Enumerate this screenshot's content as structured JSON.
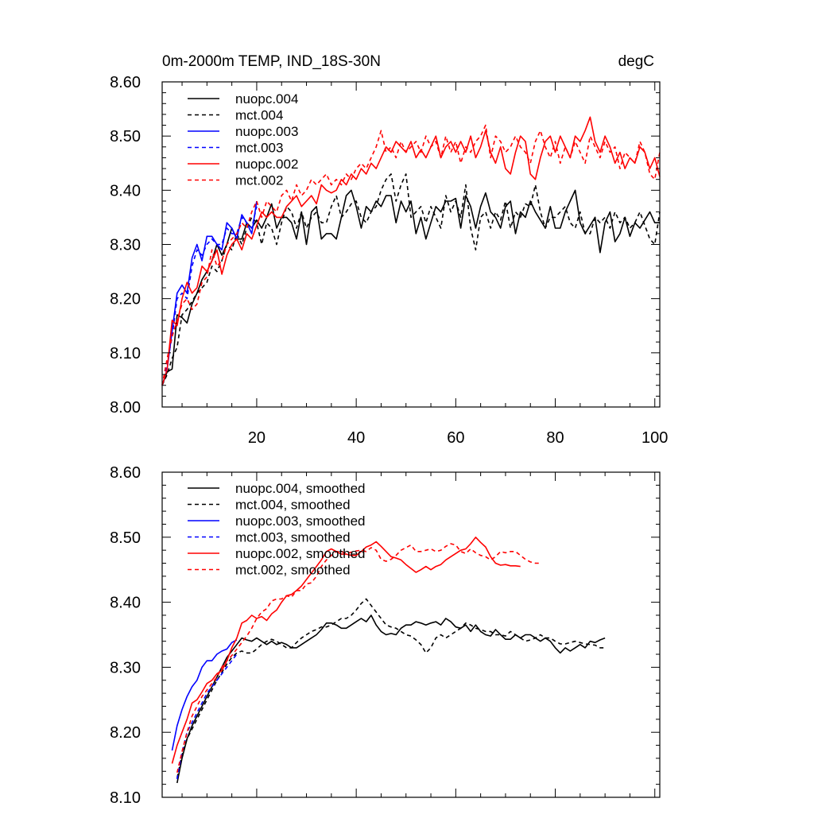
{
  "chart_data": [
    {
      "type": "line",
      "title": "0m-2000m TEMP, IND_18S-30N",
      "units": "degC",
      "xlabel": "",
      "ylabel": "",
      "xlim": [
        1,
        101
      ],
      "ylim": [
        8.0,
        8.6
      ],
      "xticks": [
        20,
        40,
        60,
        80,
        100
      ],
      "yticks": [
        8.0,
        8.1,
        8.2,
        8.3,
        8.4,
        8.5,
        8.6
      ],
      "ytick_labels": [
        "8.00",
        "8.10",
        "8.20",
        "8.30",
        "8.40",
        "8.50",
        "8.60"
      ],
      "legend_location": "top-left",
      "series": [
        {
          "name": "nuopc.004",
          "color": "#000000",
          "dash": "solid",
          "x_start": 1,
          "values": [
            8.04,
            8.065,
            8.07,
            8.17,
            8.165,
            8.155,
            8.19,
            8.21,
            8.235,
            8.25,
            8.27,
            8.3,
            8.28,
            8.3,
            8.33,
            8.31,
            8.31,
            8.34,
            8.33,
            8.345,
            8.33,
            8.35,
            8.375,
            8.33,
            8.35,
            8.35,
            8.34,
            8.31,
            8.36,
            8.3,
            8.36,
            8.37,
            8.31,
            8.32,
            8.32,
            8.31,
            8.35,
            8.39,
            8.4,
            8.37,
            8.33,
            8.37,
            8.36,
            8.38,
            8.37,
            8.39,
            8.39,
            8.34,
            8.38,
            8.36,
            8.38,
            8.32,
            8.35,
            8.31,
            8.34,
            8.37,
            8.36,
            8.38,
            8.38,
            8.385,
            8.33,
            8.39,
            8.37,
            8.33,
            8.37,
            8.395,
            8.36,
            8.35,
            8.33,
            8.37,
            8.38,
            8.32,
            8.36,
            8.35,
            8.38,
            8.36,
            8.345,
            8.33,
            8.37,
            8.33,
            8.33,
            8.36,
            8.38,
            8.4,
            8.34,
            8.32,
            8.335,
            8.35,
            8.285,
            8.34,
            8.36,
            8.305,
            8.32,
            8.35,
            8.315,
            8.34,
            8.33,
            8.345,
            8.36,
            8.34,
            8.34
          ]
        },
        {
          "name": "mct.004",
          "color": "#000000",
          "dash": "dashed",
          "x_start": 1,
          "values": [
            8.04,
            8.06,
            8.09,
            8.11,
            8.17,
            8.18,
            8.195,
            8.21,
            8.22,
            8.23,
            8.26,
            8.25,
            8.27,
            8.3,
            8.29,
            8.32,
            8.3,
            8.33,
            8.35,
            8.34,
            8.3,
            8.34,
            8.33,
            8.3,
            8.34,
            8.37,
            8.36,
            8.33,
            8.36,
            8.33,
            8.35,
            8.36,
            8.34,
            8.34,
            8.37,
            8.39,
            8.35,
            8.36,
            8.375,
            8.38,
            8.35,
            8.34,
            8.36,
            8.37,
            8.4,
            8.42,
            8.43,
            8.38,
            8.41,
            8.43,
            8.35,
            8.36,
            8.37,
            8.34,
            8.37,
            8.35,
            8.33,
            8.39,
            8.36,
            8.38,
            8.35,
            8.41,
            8.33,
            8.29,
            8.35,
            8.36,
            8.33,
            8.36,
            8.345,
            8.38,
            8.33,
            8.36,
            8.35,
            8.375,
            8.37,
            8.41,
            8.36,
            8.33,
            8.35,
            8.35,
            8.36,
            8.37,
            8.34,
            8.33,
            8.36,
            8.32,
            8.32,
            8.35,
            8.34,
            8.35,
            8.33,
            8.36,
            8.34,
            8.35,
            8.33,
            8.34,
            8.36,
            8.335,
            8.31,
            8.3,
            8.36
          ]
        },
        {
          "name": "nuopc.003",
          "color": "#0000ff",
          "dash": "solid",
          "x_start": 1,
          "values": [
            8.04,
            8.07,
            8.14,
            8.21,
            8.225,
            8.21,
            8.275,
            8.3,
            8.27,
            8.315,
            8.315,
            8.3,
            8.29,
            8.34,
            8.33,
            8.31,
            8.355,
            8.34,
            8.32,
            8.38
          ]
        },
        {
          "name": "mct.003",
          "color": "#0000ff",
          "dash": "dashed",
          "x_start": 1,
          "values": [
            8.04,
            8.08,
            8.13,
            8.2,
            8.21,
            8.2,
            8.26,
            8.29,
            8.28,
            8.3,
            8.31,
            8.3,
            8.3,
            8.33,
            8.32,
            8.32,
            8.35,
            8.34,
            8.33,
            8.37
          ]
        },
        {
          "name": "nuopc.002",
          "color": "#ff0000",
          "dash": "solid",
          "x_start": 1,
          "values": [
            8.04,
            8.07,
            8.16,
            8.15,
            8.2,
            8.23,
            8.21,
            8.22,
            8.26,
            8.25,
            8.27,
            8.29,
            8.245,
            8.28,
            8.3,
            8.31,
            8.29,
            8.32,
            8.31,
            8.335,
            8.36,
            8.35,
            8.36,
            8.35,
            8.35,
            8.37,
            8.38,
            8.39,
            8.37,
            8.38,
            8.39,
            8.375,
            8.41,
            8.4,
            8.395,
            8.4,
            8.42,
            8.41,
            8.43,
            8.42,
            8.44,
            8.43,
            8.45,
            8.44,
            8.46,
            8.48,
            8.47,
            8.49,
            8.48,
            8.47,
            8.49,
            8.46,
            8.475,
            8.46,
            8.48,
            8.5,
            8.46,
            8.48,
            8.49,
            8.47,
            8.49,
            8.47,
            8.5,
            8.46,
            8.48,
            8.51,
            8.47,
            8.45,
            8.48,
            8.44,
            8.43,
            8.47,
            8.5,
            8.49,
            8.43,
            8.42,
            8.46,
            8.49,
            8.5,
            8.47,
            8.5,
            8.48,
            8.46,
            8.5,
            8.49,
            8.51,
            8.535,
            8.49,
            8.47,
            8.5,
            8.48,
            8.45,
            8.47,
            8.44,
            8.46,
            8.45,
            8.48,
            8.47,
            8.44,
            8.46,
            8.425
          ]
        },
        {
          "name": "mct.002",
          "color": "#ff0000",
          "dash": "dashed",
          "x_start": 1,
          "values": [
            8.04,
            8.09,
            8.13,
            8.16,
            8.19,
            8.2,
            8.18,
            8.19,
            8.23,
            8.24,
            8.29,
            8.26,
            8.27,
            8.3,
            8.31,
            8.32,
            8.34,
            8.33,
            8.36,
            8.38,
            8.35,
            8.38,
            8.37,
            8.36,
            8.39,
            8.4,
            8.38,
            8.41,
            8.39,
            8.4,
            8.42,
            8.41,
            8.42,
            8.43,
            8.41,
            8.42,
            8.41,
            8.43,
            8.42,
            8.44,
            8.45,
            8.44,
            8.46,
            8.48,
            8.51,
            8.47,
            8.48,
            8.46,
            8.49,
            8.47,
            8.48,
            8.49,
            8.47,
            8.5,
            8.48,
            8.49,
            8.46,
            8.5,
            8.47,
            8.49,
            8.45,
            8.48,
            8.47,
            8.49,
            8.5,
            8.52,
            8.46,
            8.5,
            8.49,
            8.47,
            8.48,
            8.5,
            8.48,
            8.47,
            8.45,
            8.49,
            8.51,
            8.48,
            8.46,
            8.49,
            8.45,
            8.48,
            8.46,
            8.49,
            8.47,
            8.45,
            8.5,
            8.48,
            8.46,
            8.49,
            8.47,
            8.48,
            8.44,
            8.47,
            8.46,
            8.45,
            8.49,
            8.47,
            8.43,
            8.42,
            8.47
          ]
        }
      ]
    },
    {
      "type": "line",
      "title": "",
      "xlabel": "",
      "ylabel": "",
      "xlim": [
        1,
        101
      ],
      "ylim": [
        8.1,
        8.6
      ],
      "xticks": [
        20,
        40,
        60,
        80,
        100
      ],
      "yticks": [
        8.1,
        8.2,
        8.3,
        8.4,
        8.5,
        8.6
      ],
      "ytick_labels": [
        "8.10",
        "8.20",
        "8.30",
        "8.40",
        "8.50",
        "8.60"
      ],
      "legend_location": "top-left",
      "series": [
        {
          "name": "nuopc.004, smoothed",
          "color": "#000000",
          "dash": "solid",
          "x_start": 4,
          "values": [
            8.122,
            8.16,
            8.19,
            8.21,
            8.225,
            8.24,
            8.255,
            8.27,
            8.285,
            8.3,
            8.315,
            8.325,
            8.335,
            8.345,
            8.342,
            8.34,
            8.345,
            8.34,
            8.335,
            8.34,
            8.335,
            8.338,
            8.335,
            8.33,
            8.33,
            8.335,
            8.34,
            8.345,
            8.35,
            8.358,
            8.368,
            8.368,
            8.365,
            8.36,
            8.36,
            8.365,
            8.37,
            8.375,
            8.37,
            8.38,
            8.365,
            8.355,
            8.35,
            8.352,
            8.35,
            8.36,
            8.365,
            8.365,
            8.37,
            8.368,
            8.365,
            8.368,
            8.37,
            8.365,
            8.375,
            8.37,
            8.362,
            8.36,
            8.365,
            8.355,
            8.365,
            8.355,
            8.35,
            8.348,
            8.358,
            8.35,
            8.343,
            8.343,
            8.35,
            8.345,
            8.35,
            8.35,
            8.345,
            8.34,
            8.345,
            8.34,
            8.33,
            8.322,
            8.33,
            8.325,
            8.33,
            8.335,
            8.33,
            8.34,
            8.338,
            8.342,
            8.345
          ]
        },
        {
          "name": "mct.004, smoothed",
          "color": "#000000",
          "dash": "dashed",
          "x_start": 4,
          "values": [
            8.13,
            8.165,
            8.19,
            8.205,
            8.22,
            8.235,
            8.25,
            8.265,
            8.28,
            8.292,
            8.305,
            8.315,
            8.322,
            8.325,
            8.322,
            8.322,
            8.328,
            8.335,
            8.34,
            8.343,
            8.34,
            8.335,
            8.33,
            8.33,
            8.338,
            8.345,
            8.35,
            8.355,
            8.358,
            8.362,
            8.362,
            8.365,
            8.37,
            8.375,
            8.375,
            8.38,
            8.388,
            8.398,
            8.405,
            8.395,
            8.385,
            8.375,
            8.365,
            8.362,
            8.36,
            8.355,
            8.35,
            8.348,
            8.342,
            8.335,
            8.322,
            8.33,
            8.345,
            8.35,
            8.345,
            8.35,
            8.355,
            8.36,
            8.368,
            8.365,
            8.36,
            8.358,
            8.355,
            8.355,
            8.35,
            8.35,
            8.348,
            8.355,
            8.35,
            8.345,
            8.34,
            8.342,
            8.345,
            8.35,
            8.345,
            8.345,
            8.34,
            8.336,
            8.336,
            8.338,
            8.34,
            8.338,
            8.336,
            8.335,
            8.334,
            8.33,
            8.33
          ]
        },
        {
          "name": "nuopc.003, smoothed",
          "color": "#0000ff",
          "dash": "solid",
          "x_start": 3,
          "values": [
            8.172,
            8.21,
            8.235,
            8.255,
            8.27,
            8.28,
            8.3,
            8.31,
            8.31,
            8.32,
            8.325,
            8.328,
            8.338,
            8.342
          ]
        },
        {
          "name": "mct.003, smoothed",
          "color": "#0000ff",
          "dash": "dashed",
          "x_start": 4,
          "values": [
            8.128,
            8.17,
            8.2,
            8.215,
            8.23,
            8.245,
            8.26,
            8.27,
            8.28,
            8.29,
            8.3,
            8.31,
            8.32
          ]
        },
        {
          "name": "nuopc.002, smoothed",
          "color": "#ff0000",
          "dash": "solid",
          "x_start": 3,
          "values": [
            8.152,
            8.18,
            8.2,
            8.22,
            8.245,
            8.25,
            8.262,
            8.275,
            8.28,
            8.29,
            8.295,
            8.31,
            8.33,
            8.345,
            8.368,
            8.372,
            8.38,
            8.375,
            8.378,
            8.372,
            8.382,
            8.388,
            8.4,
            8.41,
            8.412,
            8.418,
            8.425,
            8.435,
            8.445,
            8.455,
            8.465,
            8.478,
            8.482,
            8.478,
            8.474,
            8.474,
            8.472,
            8.472,
            8.478,
            8.485,
            8.488,
            8.493,
            8.486,
            8.478,
            8.47,
            8.468,
            8.465,
            8.458,
            8.452,
            8.446,
            8.45,
            8.455,
            8.45,
            8.455,
            8.458,
            8.465,
            8.47,
            8.475,
            8.48,
            8.482,
            8.49,
            8.5,
            8.492,
            8.485,
            8.47,
            8.46,
            8.457,
            8.458,
            8.456,
            8.456,
            8.455
          ]
        },
        {
          "name": "mct.002, smoothed",
          "color": "#ff0000",
          "dash": "dashed",
          "x_start": 4,
          "values": [
            8.138,
            8.17,
            8.2,
            8.225,
            8.24,
            8.255,
            8.265,
            8.275,
            8.285,
            8.3,
            8.31,
            8.318,
            8.328,
            8.338,
            8.348,
            8.36,
            8.375,
            8.385,
            8.39,
            8.402,
            8.405,
            8.405,
            8.41,
            8.408,
            8.418,
            8.418,
            8.428,
            8.43,
            8.44,
            8.455,
            8.465,
            8.472,
            8.478,
            8.478,
            8.475,
            8.477,
            8.479,
            8.48,
            8.478,
            8.484,
            8.48,
            8.466,
            8.463,
            8.466,
            8.472,
            8.48,
            8.484,
            8.488,
            8.478,
            8.478,
            8.48,
            8.482,
            8.478,
            8.48,
            8.486,
            8.49,
            8.488,
            8.478,
            8.475,
            8.482,
            8.476,
            8.472,
            8.47,
            8.465,
            8.47,
            8.478,
            8.476,
            8.478,
            8.478,
            8.472,
            8.466,
            8.462,
            8.46,
            8.46
          ]
        }
      ]
    }
  ]
}
